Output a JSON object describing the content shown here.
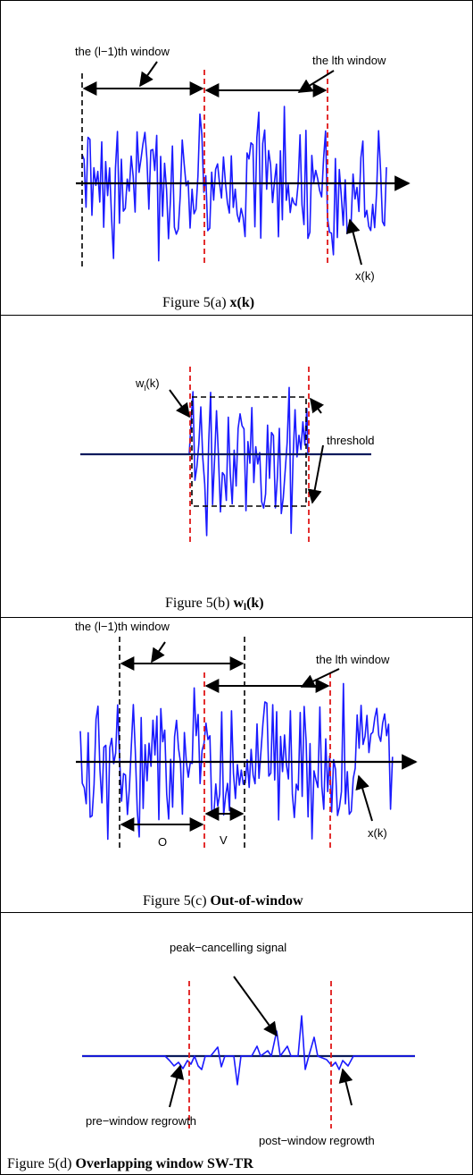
{
  "panels": {
    "a": {
      "label_prev_window": "the (l−1)th window",
      "label_curr_window": "the lth window",
      "label_signal": "x(k)",
      "caption_prefix": "Figure 5(a) ",
      "caption_bold": "x(k)"
    },
    "b": {
      "label_window_fn": "w",
      "label_window_fn_sub": "l",
      "label_window_fn_suffix": "(k)",
      "label_threshold": "threshold",
      "caption_prefix": "Figure 5(b) ",
      "caption_bold": "w",
      "caption_sub": "l",
      "caption_bold_suffix": "(k)"
    },
    "c": {
      "label_prev_window": "the (l−1)th window",
      "label_curr_window": "the lth window",
      "label_o": "O",
      "label_v": "V",
      "label_signal": "x(k)",
      "caption_prefix": "Figure 5(c) ",
      "caption_bold": "Out-of-window"
    },
    "d": {
      "label_peak": "peak−cancelling signal",
      "label_pre": "pre−window regrowth",
      "label_post": "post−window regrowth",
      "caption_prefix": "Figure 5(d) ",
      "caption_bold": "Overlapping window SW-TR"
    }
  },
  "colors": {
    "signal": "#1a1aff",
    "window_boundary": "#e01818",
    "axis": "#000000"
  }
}
